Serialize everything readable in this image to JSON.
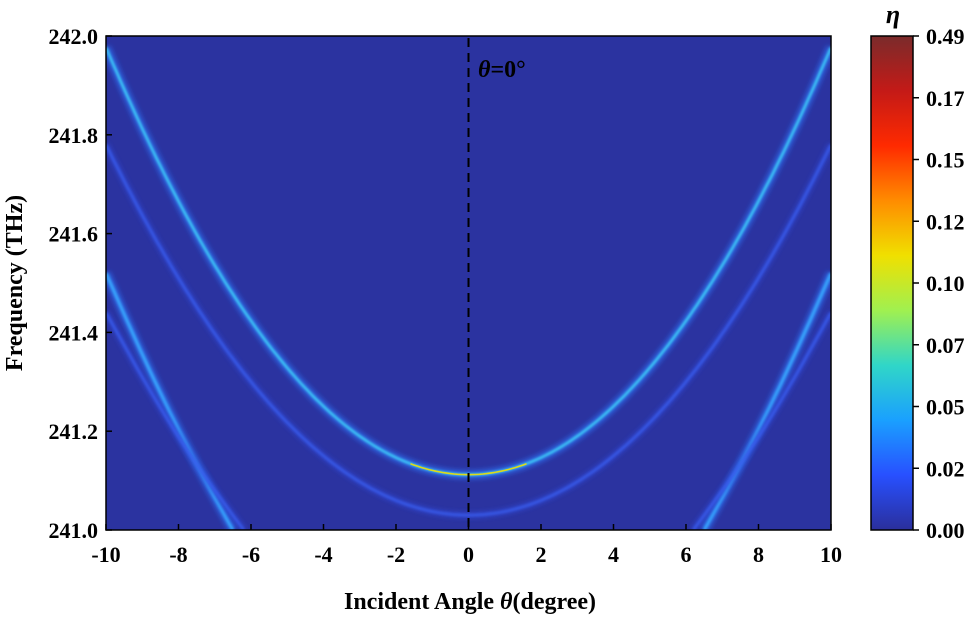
{
  "chart_data": {
    "type": "heatmap",
    "title": "",
    "xlabel": "Incident Angle",
    "xlabel_symbol": "θ",
    "xlabel_unit": "(degree)",
    "ylabel": "Frequency (THz)",
    "xlim": [
      -10,
      10
    ],
    "ylim": [
      241.0,
      242.0
    ],
    "x_ticks": [
      "-10",
      "-8",
      "-6",
      "-4",
      "-2",
      "0",
      "2",
      "4",
      "6",
      "8",
      "10"
    ],
    "y_ticks": [
      "241.0",
      "241.2",
      "241.4",
      "241.6",
      "241.8",
      "242.0"
    ],
    "annotation": {
      "symbol": "θ",
      "text": "=0°",
      "line_x": 0
    },
    "colorbar": {
      "label": "η",
      "ticks": [
        "0.49",
        "0.17",
        "0.15",
        "0.12",
        "0.10",
        "0.07",
        "0.05",
        "0.02",
        "0.00"
      ],
      "colors": [
        "#7a2b2b",
        "#c41a17",
        "#ff2a00",
        "#ff8c00",
        "#f0e000",
        "#a0f050",
        "#30d6c8",
        "#1aa0ff",
        "#2850ff",
        "#2a2f9c"
      ]
    },
    "background_color": "#2b33a0",
    "bands": [
      {
        "name": "center-sharp",
        "vertex_x": 0,
        "vertex_y": 241.112,
        "curvature": 0.00865,
        "peak": 0.12,
        "x_range": [
          -10,
          10
        ]
      },
      {
        "name": "center-faint",
        "vertex_x": 0,
        "vertex_y": 241.03,
        "curvature": 0.0075,
        "peak": 0.02,
        "x_range": [
          -10,
          10
        ]
      },
      {
        "name": "left-bright",
        "from": [
          -10,
          241.52
        ],
        "to": [
          -6.5,
          241.0
        ],
        "peak": 0.07
      },
      {
        "name": "left-faint",
        "from": [
          -10,
          241.44
        ],
        "to": [
          -6.2,
          241.0
        ],
        "peak": 0.02
      },
      {
        "name": "right-bright",
        "from": [
          6.5,
          241.0
        ],
        "to": [
          10,
          241.52
        ],
        "peak": 0.07
      },
      {
        "name": "right-faint",
        "from": [
          6.2,
          241.0
        ],
        "to": [
          10,
          241.44
        ],
        "peak": 0.02
      }
    ]
  }
}
